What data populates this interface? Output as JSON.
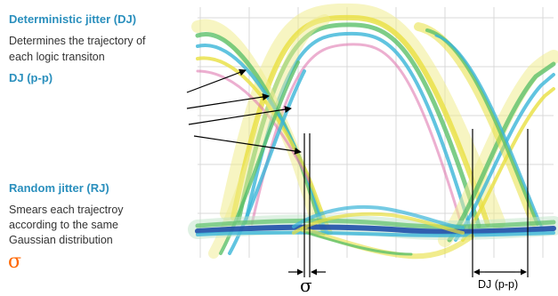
{
  "deterministic": {
    "title": "Deterministic jitter (DJ)",
    "description_line1": "Determines the trajectory of",
    "description_line2": "each logic transiton",
    "pp_label": "DJ (p-p)"
  },
  "random": {
    "title": "Random jitter (RJ)",
    "description_line1": "Smears each trajectroy",
    "description_line2": "according to the same",
    "description_line3": "Gaussian distribution",
    "symbol": "σ"
  },
  "diagram": {
    "sigma_label": "σ",
    "djpp_label": "DJ (p-p)"
  },
  "colors": {
    "heading": "#2a8fbd",
    "accent": "#ff6600",
    "trace_yellow": "#e8e040",
    "trace_green": "#5cc06a",
    "trace_cyan": "#3ab5d8",
    "trace_blue": "#1e4fa8",
    "trace_pink": "#e07ab0"
  }
}
